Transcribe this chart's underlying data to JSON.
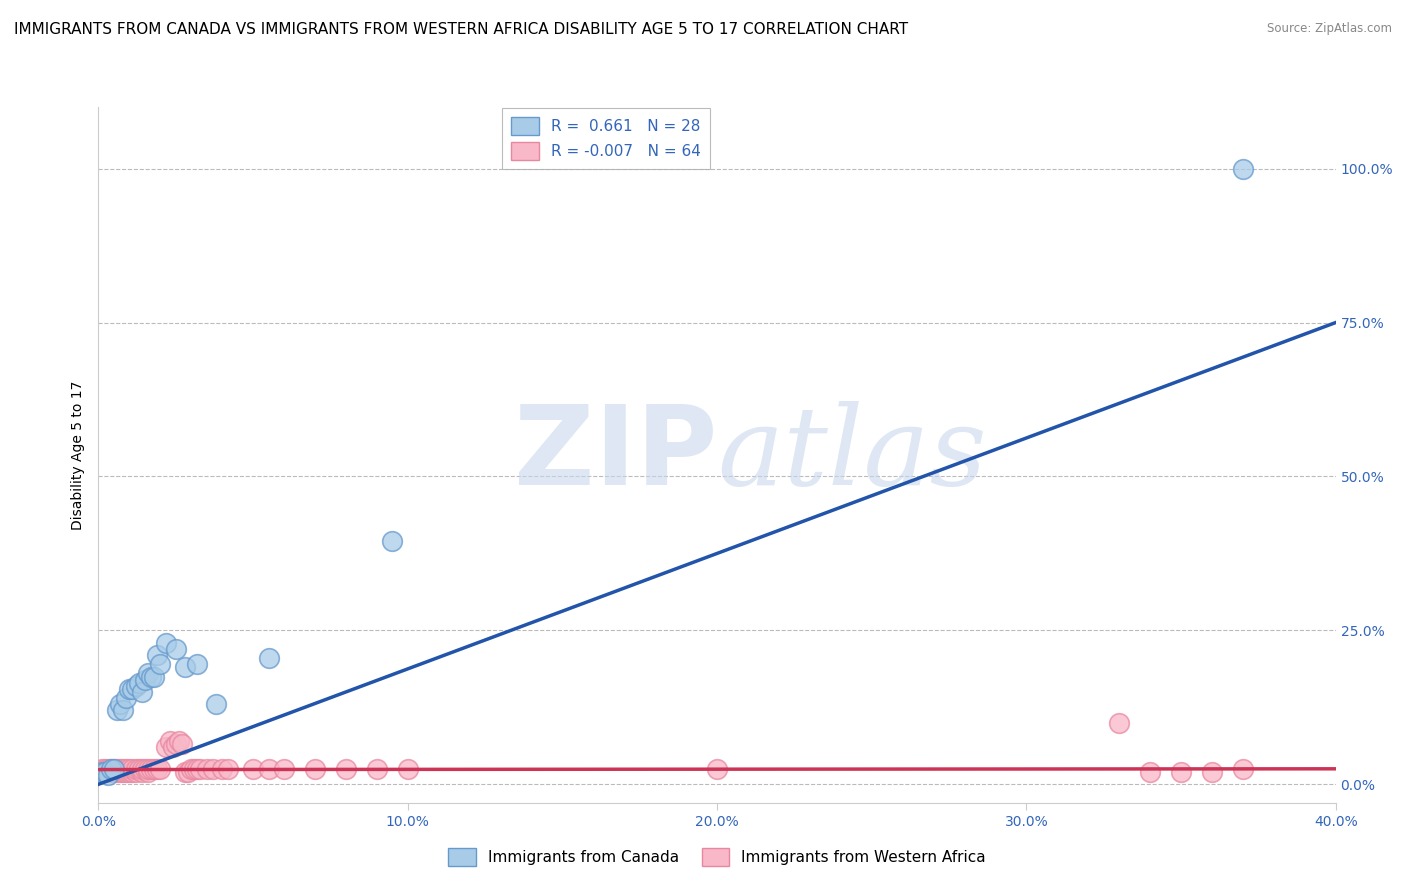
{
  "title": "IMMIGRANTS FROM CANADA VS IMMIGRANTS FROM WESTERN AFRICA DISABILITY AGE 5 TO 17 CORRELATION CHART",
  "source": "Source: ZipAtlas.com",
  "ylabel": "Disability Age 5 to 17",
  "xlim": [
    0.0,
    0.4
  ],
  "ylim": [
    -0.03,
    1.1
  ],
  "ytick_labels": [
    "0.0%",
    "25.0%",
    "50.0%",
    "75.0%",
    "100.0%"
  ],
  "ytick_vals": [
    0.0,
    0.25,
    0.5,
    0.75,
    1.0
  ],
  "xtick_labels": [
    "0.0%",
    "10.0%",
    "20.0%",
    "30.0%",
    "40.0%"
  ],
  "xtick_vals": [
    0.0,
    0.1,
    0.2,
    0.3,
    0.4
  ],
  "canada_color": "#A8CCE8",
  "canada_edge_color": "#6699CC",
  "western_africa_color": "#F9B8C8",
  "western_africa_edge_color": "#E888A0",
  "regression_canada_color": "#2255AA",
  "regression_wa_color": "#CC3355",
  "watermark_zip": "ZIP",
  "watermark_atlas": "atlas",
  "R_canada": 0.661,
  "N_canada": 28,
  "R_wa": -0.007,
  "N_wa": 64,
  "canada_x": [
    0.001,
    0.002,
    0.003,
    0.004,
    0.005,
    0.006,
    0.007,
    0.008,
    0.009,
    0.01,
    0.011,
    0.012,
    0.013,
    0.014,
    0.015,
    0.016,
    0.017,
    0.018,
    0.019,
    0.02,
    0.022,
    0.025,
    0.028,
    0.032,
    0.038,
    0.055,
    0.095,
    0.37
  ],
  "canada_y": [
    0.02,
    0.02,
    0.015,
    0.025,
    0.025,
    0.12,
    0.13,
    0.12,
    0.14,
    0.155,
    0.155,
    0.16,
    0.165,
    0.15,
    0.17,
    0.18,
    0.175,
    0.175,
    0.21,
    0.195,
    0.23,
    0.22,
    0.19,
    0.195,
    0.13,
    0.205,
    0.395,
    1.0
  ],
  "wa_x": [
    0.001,
    0.001,
    0.002,
    0.002,
    0.003,
    0.003,
    0.003,
    0.004,
    0.004,
    0.005,
    0.005,
    0.006,
    0.006,
    0.007,
    0.007,
    0.008,
    0.008,
    0.009,
    0.009,
    0.01,
    0.01,
    0.011,
    0.011,
    0.012,
    0.012,
    0.013,
    0.014,
    0.014,
    0.015,
    0.016,
    0.016,
    0.017,
    0.018,
    0.019,
    0.02,
    0.022,
    0.023,
    0.024,
    0.025,
    0.026,
    0.027,
    0.028,
    0.029,
    0.03,
    0.031,
    0.032,
    0.033,
    0.035,
    0.037,
    0.04,
    0.042,
    0.05,
    0.055,
    0.06,
    0.07,
    0.08,
    0.09,
    0.1,
    0.2,
    0.33,
    0.34,
    0.35,
    0.36,
    0.37
  ],
  "wa_y": [
    0.02,
    0.025,
    0.02,
    0.025,
    0.02,
    0.02,
    0.025,
    0.02,
    0.025,
    0.02,
    0.025,
    0.02,
    0.025,
    0.02,
    0.025,
    0.02,
    0.025,
    0.02,
    0.025,
    0.02,
    0.025,
    0.02,
    0.025,
    0.02,
    0.025,
    0.025,
    0.02,
    0.025,
    0.025,
    0.02,
    0.025,
    0.025,
    0.025,
    0.025,
    0.025,
    0.06,
    0.07,
    0.06,
    0.065,
    0.07,
    0.065,
    0.02,
    0.02,
    0.025,
    0.025,
    0.025,
    0.025,
    0.025,
    0.025,
    0.025,
    0.025,
    0.025,
    0.025,
    0.025,
    0.025,
    0.025,
    0.025,
    0.025,
    0.025,
    0.1,
    0.02,
    0.02,
    0.02,
    0.025
  ],
  "background_color": "#FFFFFF",
  "grid_color": "#BBBBBB",
  "title_fontsize": 11,
  "axis_label_fontsize": 10,
  "tick_fontsize": 10,
  "legend_fontsize": 11,
  "regression_canada_slope": 1.875,
  "regression_canada_intercept": 0.0,
  "regression_wa_slope": 0.003,
  "regression_wa_intercept": 0.024
}
